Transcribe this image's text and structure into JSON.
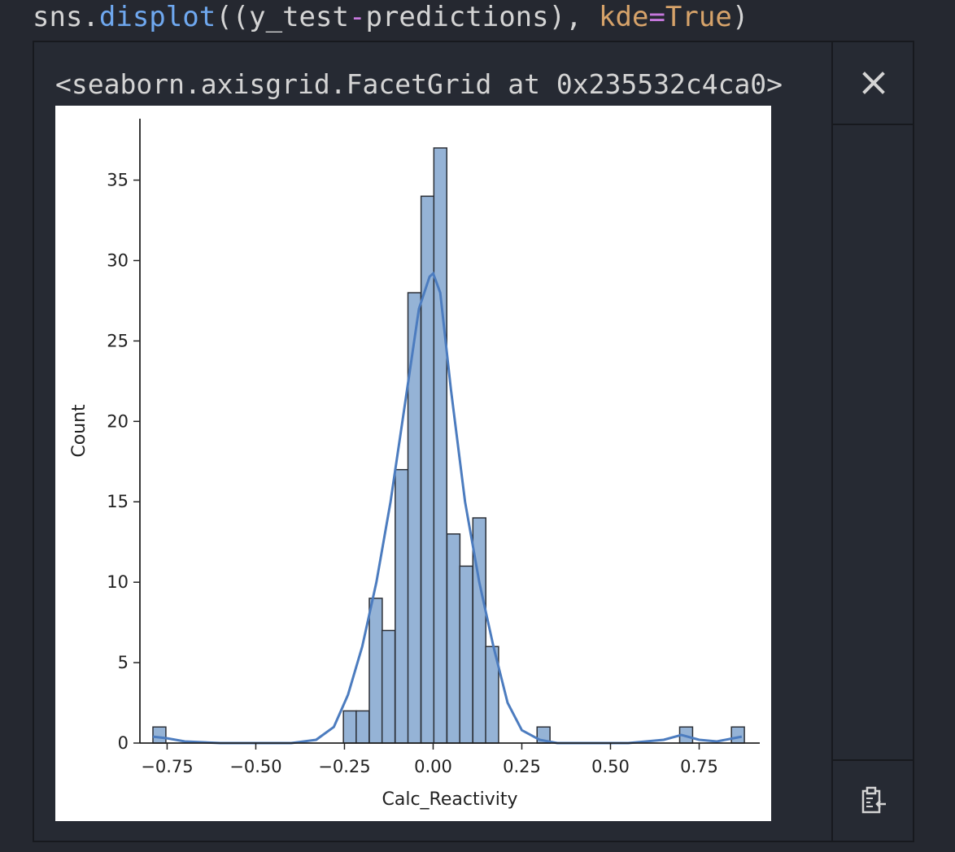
{
  "code": {
    "prefix": "sns.",
    "function": "displot",
    "open": "((y_test",
    "minus": "-",
    "predictions": "predictions), ",
    "kwarg": "kde",
    "equals": "=",
    "value": "True",
    "close": ")"
  },
  "output": {
    "repr_text": "<seaborn.axisgrid.FacetGrid at 0x235532c4ca0>"
  },
  "controls": {
    "close_icon": "close-icon",
    "copy_icon": "clipboard-copy-icon"
  },
  "colors": {
    "bar_fill": "#95b3d6",
    "bar_stroke": "#2b2f36",
    "kde_line": "#4c7cbf"
  },
  "chart_data": {
    "type": "bar",
    "xlabel": "Calc_Reactivity",
    "ylabel": "Count",
    "xlim": [
      -0.8,
      0.9
    ],
    "ylim": [
      0,
      37
    ],
    "xticks": [
      -0.75,
      -0.5,
      -0.25,
      0.0,
      0.25,
      0.5,
      0.75
    ],
    "xtick_labels": [
      "−0.75",
      "−0.50",
      "−0.25",
      "0.00",
      "0.25",
      "0.50",
      "0.75"
    ],
    "yticks": [
      0,
      5,
      10,
      15,
      20,
      25,
      30,
      35
    ],
    "ytick_labels": [
      "0",
      "5",
      "10",
      "15",
      "20",
      "25",
      "30",
      "35"
    ],
    "bin_edges_start": -0.79,
    "bin_width": 0.0365,
    "bars": [
      {
        "x0": -0.79,
        "count": 1
      },
      {
        "x0": -0.253,
        "count": 2
      },
      {
        "x0": -0.217,
        "count": 2
      },
      {
        "x0": -0.18,
        "count": 9
      },
      {
        "x0": -0.144,
        "count": 7
      },
      {
        "x0": -0.107,
        "count": 17
      },
      {
        "x0": -0.071,
        "count": 28
      },
      {
        "x0": -0.034,
        "count": 34
      },
      {
        "x0": 0.002,
        "count": 37
      },
      {
        "x0": 0.039,
        "count": 13
      },
      {
        "x0": 0.075,
        "count": 11
      },
      {
        "x0": 0.112,
        "count": 14
      },
      {
        "x0": 0.148,
        "count": 6
      },
      {
        "x0": 0.293,
        "count": 1
      },
      {
        "x0": 0.695,
        "count": 1
      },
      {
        "x0": 0.841,
        "count": 1
      }
    ],
    "kde": {
      "x": [
        -0.79,
        -0.75,
        -0.7,
        -0.6,
        -0.5,
        -0.4,
        -0.33,
        -0.28,
        -0.24,
        -0.2,
        -0.16,
        -0.12,
        -0.08,
        -0.04,
        -0.01,
        0.0,
        0.02,
        0.05,
        0.09,
        0.13,
        0.17,
        0.21,
        0.25,
        0.3,
        0.35,
        0.45,
        0.55,
        0.65,
        0.7,
        0.75,
        0.8,
        0.87
      ],
      "y": [
        0.4,
        0.3,
        0.1,
        0.0,
        0.0,
        0.0,
        0.2,
        1.0,
        3.0,
        6.0,
        10.0,
        15.0,
        21.0,
        27.0,
        29.0,
        29.2,
        28.0,
        22.0,
        15.0,
        10.0,
        6.0,
        2.5,
        0.8,
        0.2,
        0.0,
        0.0,
        0.0,
        0.2,
        0.5,
        0.2,
        0.1,
        0.4
      ]
    }
  }
}
